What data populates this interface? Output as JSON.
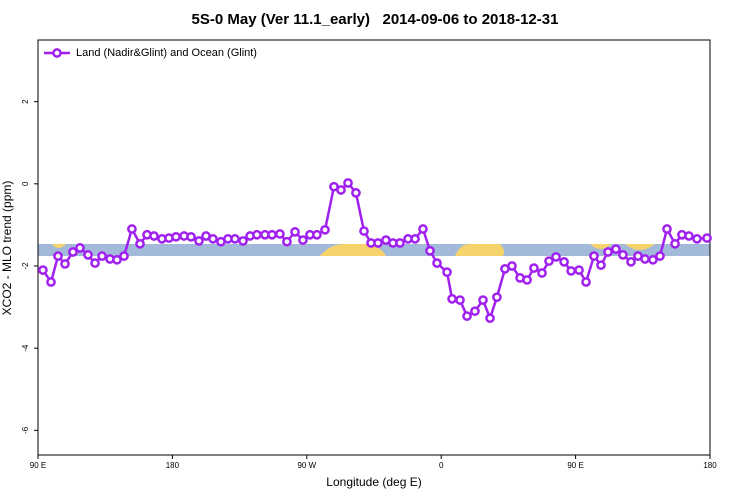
{
  "chart_data": {
    "type": "line",
    "title": "5S-0 May (Ver 11.1_early)   2014-09-06 to 2018-12-31",
    "xlabel": "Longitude (deg E)",
    "ylabel": "XCO2 - MLO trend (ppm)",
    "xlim": [
      90,
      540
    ],
    "ylim": [
      -6.6,
      3.5
    ],
    "xticks": [
      {
        "value": 90,
        "label": "90 E"
      },
      180,
      {
        "value": 270,
        "label": "90 W"
      },
      {
        "value": 360,
        "label": "0"
      },
      {
        "value": 450,
        "label": "90 E"
      },
      {
        "value": 540,
        "label": "180"
      }
    ],
    "yticks": [
      2,
      0,
      -2,
      -4,
      -6
    ],
    "legend": "top-left",
    "x": [
      93.3,
      98.7,
      103.4,
      108.1,
      113.4,
      118.1,
      123.5,
      128.2,
      132.9,
      138.2,
      142.9,
      147.6,
      152.9,
      158.3,
      163,
      167.7,
      173,
      177.7,
      182.4,
      187.8,
      192.5,
      197.8,
      202.5,
      207.2,
      212.5,
      217.2,
      221.9,
      227.3,
      232,
      236.6,
      242,
      246.7,
      252,
      256.7,
      262.1,
      267.4,
      272.1,
      276.8,
      282.2,
      288.2,
      292.9,
      297.6,
      302.9,
      308.3,
      313,
      317.7,
      323,
      327.7,
      332.4,
      337.8,
      342.5,
      347.8,
      352.5,
      357.2,
      363.9,
      367.3,
      372.6,
      377.3,
      382.6,
      388,
      392.7,
      397.3,
      402.7,
      407.4,
      412.8,
      417.5,
      422.1,
      427.5,
      432.2,
      436.9,
      442.3,
      447,
      452.3,
      457,
      462.3,
      467,
      471.7,
      477,
      481.7,
      487.1,
      491.8,
      496.5,
      501.8,
      506.5,
      511.2,
      516.6,
      521.2,
      525.9,
      531.3,
      538
    ],
    "series": [
      {
        "name": "Land (Nadir&Glint) and Ocean (Glint)",
        "color": "#a020f0",
        "values": [
          -2.1,
          -2.39,
          -1.76,
          -1.95,
          -1.66,
          -1.56,
          -1.73,
          -1.93,
          -1.76,
          -1.83,
          -1.85,
          -1.76,
          -1.1,
          -1.46,
          -1.24,
          -1.27,
          -1.34,
          -1.32,
          -1.29,
          -1.27,
          -1.29,
          -1.39,
          -1.27,
          -1.34,
          -1.41,
          -1.34,
          -1.34,
          -1.39,
          -1.27,
          -1.24,
          -1.24,
          -1.24,
          -1.22,
          -1.41,
          -1.17,
          -1.37,
          -1.24,
          -1.24,
          -1.12,
          -0.07,
          -0.15,
          0.02,
          -0.22,
          -1.15,
          -1.44,
          -1.44,
          -1.37,
          -1.44,
          -1.44,
          -1.34,
          -1.34,
          -1.1,
          -1.63,
          -1.93,
          -2.15,
          -2.8,
          -2.83,
          -3.22,
          -3.1,
          -2.83,
          -3.27,
          -2.76,
          -2.07,
          -2.0,
          -2.29,
          -2.34,
          -2.05,
          -2.17,
          -1.88,
          -1.78,
          -1.9,
          -2.12,
          -2.1,
          -2.39,
          -1.76,
          -1.98,
          -1.66,
          -1.59,
          -1.73,
          -1.9,
          -1.76,
          -1.83,
          -1.85,
          -1.76,
          -1.1,
          -1.46,
          -1.24,
          -1.27,
          -1.34,
          -1.32
        ]
      }
    ]
  }
}
